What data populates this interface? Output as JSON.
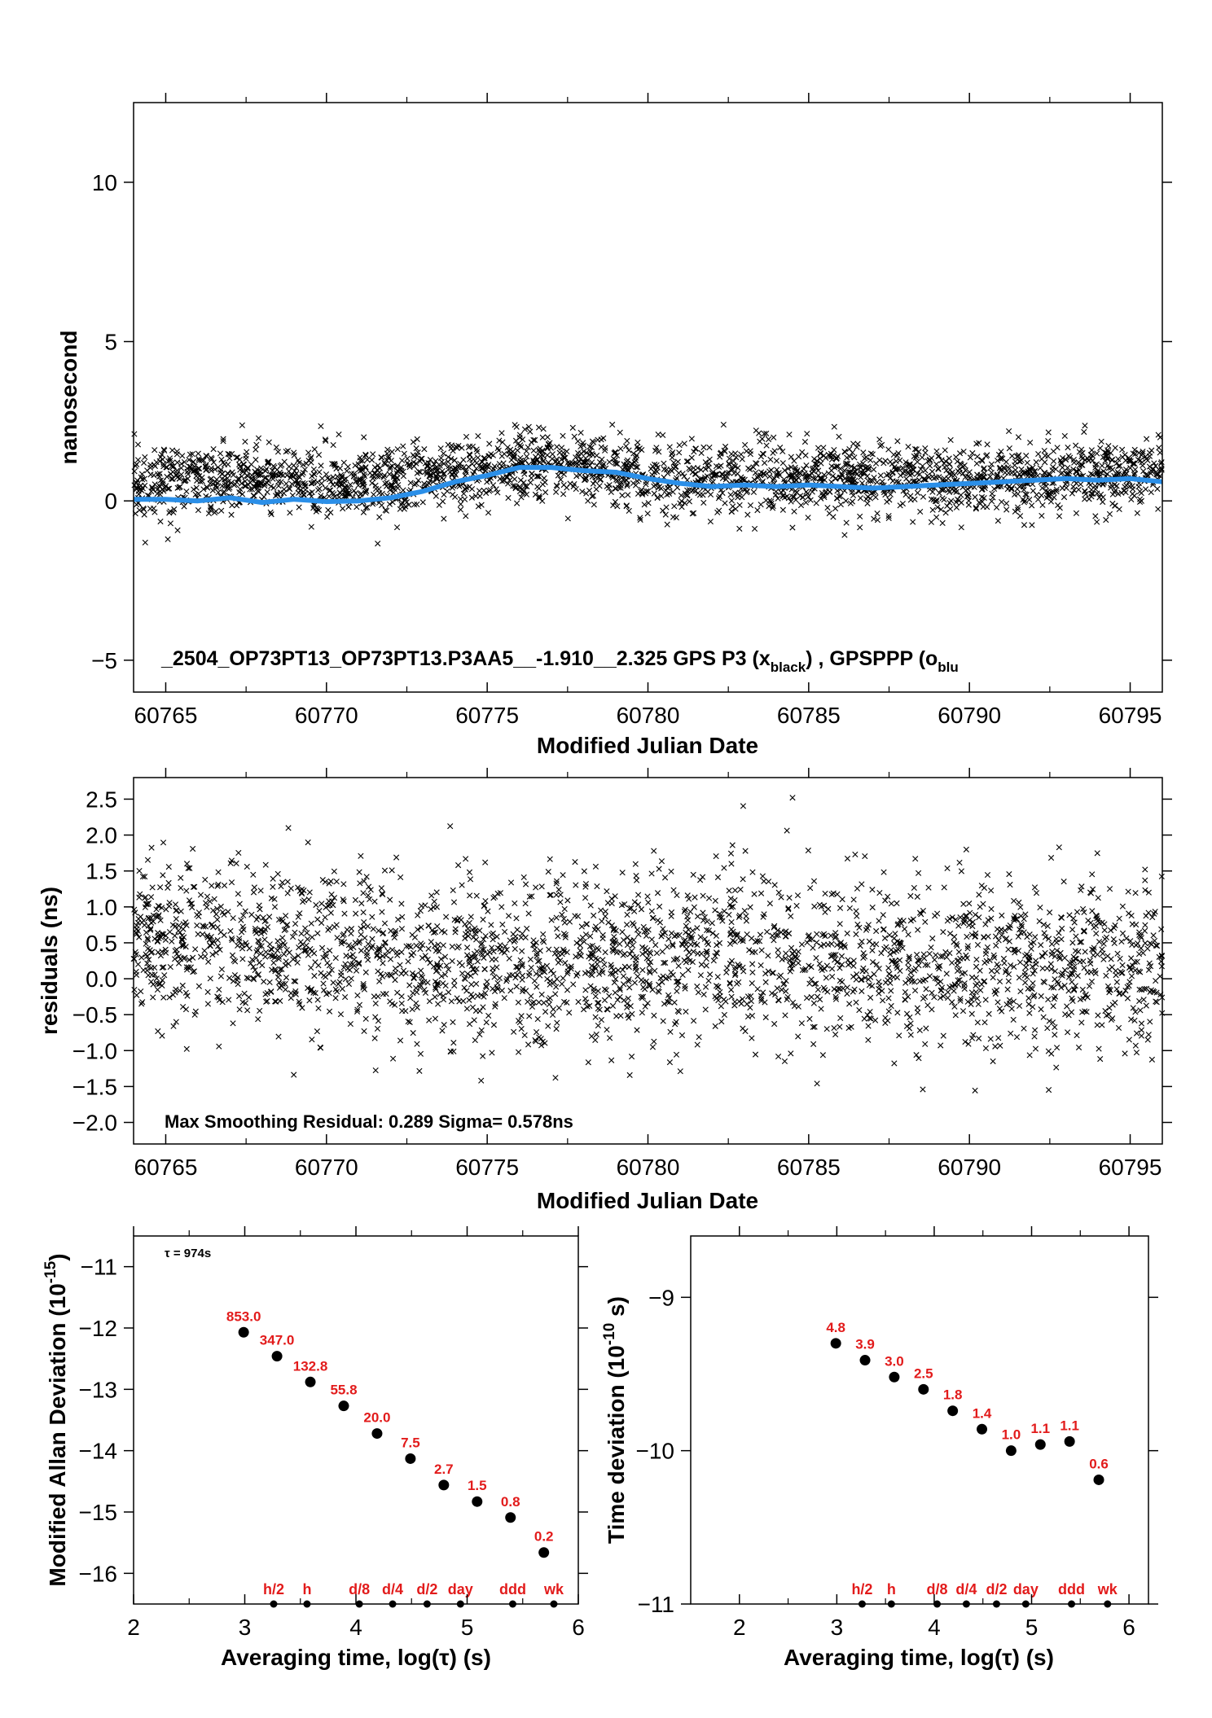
{
  "chart_data": [
    {
      "type": "scatter",
      "xlabel": "Modified Julian Date",
      "ylabel": "nanosecond",
      "xlim": [
        60764,
        60796
      ],
      "ylim": [
        -6,
        12.5
      ],
      "xticks": [
        "60765",
        "60770",
        "60775",
        "60780",
        "60785",
        "60790",
        "60795"
      ],
      "yticks": [
        "−5",
        "0",
        "5",
        "10"
      ],
      "annotation_main": "_2504_OP73PT13_OP73PT13.P3AA5__-1.910__2.325     GPS P3 (x",
      "annotation_sub1": "black",
      "annotation_mid": ") ,  GPSPPP (o",
      "annotation_sub2": "blu",
      "series": [
        {
          "name": "GPS P3",
          "marker": "x",
          "color": "#000000",
          "mean_trend": [
            [
              60764,
              0.6
            ],
            [
              60768,
              0.7
            ],
            [
              60772,
              0.5
            ],
            [
              60776,
              1.1
            ],
            [
              60778,
              1.1
            ],
            [
              60781,
              0.6
            ],
            [
              60785,
              0.8
            ],
            [
              60790,
              0.6
            ],
            [
              60796,
              0.9
            ]
          ],
          "spread": 0.55
        },
        {
          "name": "GPSPPP",
          "marker": "o",
          "color": "#2b8fe8",
          "points": [
            [
              60764,
              0.05
            ],
            [
              60765,
              0.05
            ],
            [
              60766,
              0.0
            ],
            [
              60767,
              0.1
            ],
            [
              60768,
              -0.05
            ],
            [
              60769,
              0.05
            ],
            [
              60770,
              -0.02
            ],
            [
              60771,
              0.0
            ],
            [
              60772,
              0.1
            ],
            [
              60773,
              0.3
            ],
            [
              60774,
              0.6
            ],
            [
              60775,
              0.8
            ],
            [
              60776,
              1.05
            ],
            [
              60777,
              1.05
            ],
            [
              60777.5,
              1.0
            ],
            [
              60778,
              0.95
            ],
            [
              60779,
              0.9
            ],
            [
              60780,
              0.7
            ],
            [
              60781,
              0.55
            ],
            [
              60782,
              0.45
            ],
            [
              60783,
              0.5
            ],
            [
              60784,
              0.45
            ],
            [
              60785,
              0.5
            ],
            [
              60786,
              0.45
            ],
            [
              60787,
              0.4
            ],
            [
              60788,
              0.45
            ],
            [
              60789,
              0.5
            ],
            [
              60790,
              0.55
            ],
            [
              60791,
              0.6
            ],
            [
              60792,
              0.65
            ],
            [
              60793,
              0.7
            ],
            [
              60794,
              0.65
            ],
            [
              60795,
              0.7
            ],
            [
              60796,
              0.6
            ]
          ]
        }
      ]
    },
    {
      "type": "scatter",
      "xlabel": "Modified Julian Date",
      "ylabel": "residuals (ns)",
      "xlim": [
        60764,
        60796
      ],
      "ylim": [
        -2.3,
        2.8
      ],
      "xticks": [
        "60765",
        "60770",
        "60775",
        "60780",
        "60785",
        "60790",
        "60795"
      ],
      "yticks": [
        "−2.0",
        "−1.5",
        "−1.0",
        "−0.5",
        "0.0",
        "0.5",
        "1.0",
        "1.5",
        "2.0",
        "2.5"
      ],
      "annotation": "Max Smoothing Residual: 0.289  Sigma= 0.578ns",
      "series": [
        {
          "name": "residuals",
          "marker": "x",
          "color": "#000000",
          "mean_trend": [
            [
              60764,
              0.55
            ],
            [
              60768,
              0.45
            ],
            [
              60770,
              0.5
            ],
            [
              60772,
              0.3
            ],
            [
              60776,
              0.1
            ],
            [
              60780,
              0.3
            ],
            [
              60784,
              0.35
            ],
            [
              60788,
              0.15
            ],
            [
              60792,
              0.25
            ],
            [
              60796,
              0.2
            ]
          ],
          "spread": 0.58
        }
      ]
    },
    {
      "type": "scatter",
      "xlabel": "Averaging time, log(τ) (s)",
      "ylabel": "Modified Allan Deviation (10",
      "ylabel_sup": "-15",
      "ylabel_end": ")",
      "xlim": [
        2,
        6
      ],
      "ylim": [
        -16.5,
        -10.5
      ],
      "xticks": [
        "2",
        "3",
        "4",
        "5",
        "6"
      ],
      "yticks": [
        "−16",
        "−15",
        "−14",
        "−13",
        "−12",
        "−11"
      ],
      "tau_note": "τ = 974s",
      "points": [
        {
          "x": 2.99,
          "y": -12.07,
          "label": "853.0"
        },
        {
          "x": 3.29,
          "y": -12.46,
          "label": "347.0"
        },
        {
          "x": 3.59,
          "y": -12.88,
          "label": "132.8"
        },
        {
          "x": 3.89,
          "y": -13.27,
          "label": "55.8"
        },
        {
          "x": 4.19,
          "y": -13.72,
          "label": "20.0"
        },
        {
          "x": 4.49,
          "y": -14.13,
          "label": "7.5"
        },
        {
          "x": 4.79,
          "y": -14.56,
          "label": "2.7"
        },
        {
          "x": 5.09,
          "y": -14.83,
          "label": "1.5"
        },
        {
          "x": 5.39,
          "y": -15.09,
          "label": "0.8"
        },
        {
          "x": 5.69,
          "y": -15.66,
          "label": "0.2"
        }
      ],
      "time_markers": [
        {
          "x": 3.26,
          "label": "h/2"
        },
        {
          "x": 3.56,
          "label": "h"
        },
        {
          "x": 4.03,
          "label": "d/8"
        },
        {
          "x": 4.33,
          "label": "d/4"
        },
        {
          "x": 4.64,
          "label": "d/2"
        },
        {
          "x": 4.94,
          "label": "day"
        },
        {
          "x": 5.41,
          "label": "ddd"
        },
        {
          "x": 5.78,
          "label": "wk"
        }
      ]
    },
    {
      "type": "scatter",
      "xlabel": "Averaging time, log(τ) (s)",
      "ylabel": "Time deviation (10",
      "ylabel_sup": "-10",
      "ylabel_end": " s)",
      "xlim": [
        1.5,
        6.2
      ],
      "ylim": [
        -11,
        -8.6
      ],
      "xticks": [
        "2",
        "3",
        "4",
        "5",
        "6"
      ],
      "yticks": [
        "−11",
        "−10",
        "−9"
      ],
      "points": [
        {
          "x": 2.99,
          "y": -9.3,
          "label": "4.8"
        },
        {
          "x": 3.29,
          "y": -9.41,
          "label": "3.9"
        },
        {
          "x": 3.59,
          "y": -9.52,
          "label": "3.0"
        },
        {
          "x": 3.89,
          "y": -9.6,
          "label": "2.5"
        },
        {
          "x": 4.19,
          "y": -9.74,
          "label": "1.8"
        },
        {
          "x": 4.49,
          "y": -9.86,
          "label": "1.4"
        },
        {
          "x": 4.79,
          "y": -10.0,
          "label": "1.0"
        },
        {
          "x": 5.09,
          "y": -9.96,
          "label": "1.1"
        },
        {
          "x": 5.39,
          "y": -9.94,
          "label": "1.1"
        },
        {
          "x": 5.69,
          "y": -10.19,
          "label": "0.6"
        }
      ],
      "time_markers": [
        {
          "x": 3.26,
          "label": "h/2"
        },
        {
          "x": 3.56,
          "label": "h"
        },
        {
          "x": 4.03,
          "label": "d/8"
        },
        {
          "x": 4.33,
          "label": "d/4"
        },
        {
          "x": 4.64,
          "label": "d/2"
        },
        {
          "x": 4.94,
          "label": "day"
        },
        {
          "x": 5.41,
          "label": "ddd"
        },
        {
          "x": 5.78,
          "label": "wk"
        }
      ]
    }
  ]
}
